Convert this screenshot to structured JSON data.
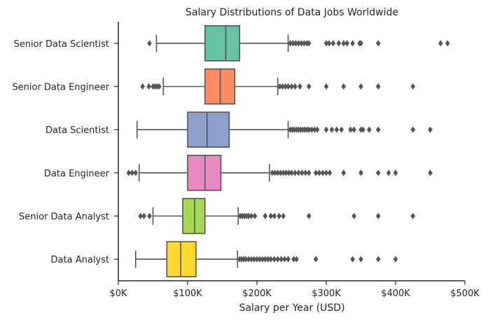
{
  "chart_data": {
    "type": "box",
    "orientation": "horizontal",
    "title": "Salary Distributions of Data Jobs Worldwide",
    "xlabel": "Salary per Year (USD)",
    "ylabel": "",
    "xlim": [
      0,
      500000
    ],
    "x_ticks": [
      {
        "value": 0,
        "label": "$0K"
      },
      {
        "value": 100000,
        "label": "$100K"
      },
      {
        "value": 200000,
        "label": "$200K"
      },
      {
        "value": 300000,
        "label": "$300K"
      },
      {
        "value": 400000,
        "label": "$400K"
      },
      {
        "value": 500000,
        "label": "$500K"
      }
    ],
    "grid": false,
    "categories": [
      "Senior Data Scientist",
      "Senior Data Engineer",
      "Data Scientist",
      "Data Engineer",
      "Senior Data Analyst",
      "Data Analyst"
    ],
    "boxes": [
      {
        "category": "Senior Data Scientist",
        "color": "#66c2a5",
        "whisker_low": 55000,
        "q1": 125000,
        "median": 155000,
        "q3": 175000,
        "whisker_high": 245000,
        "fliers": [
          45000,
          248000,
          252000,
          256000,
          260000,
          264000,
          268000,
          272000,
          275000,
          300000,
          304000,
          310000,
          318000,
          325000,
          330000,
          338000,
          348000,
          350000,
          375000,
          465000,
          475000
        ]
      },
      {
        "category": "Senior Data Engineer",
        "color": "#fc8d62",
        "whisker_low": 65000,
        "q1": 125000,
        "median": 147000,
        "q3": 168000,
        "whisker_high": 230000,
        "fliers": [
          35000,
          44000,
          50000,
          53000,
          56000,
          59000,
          233000,
          237000,
          241000,
          245000,
          250000,
          255000,
          262000,
          275000,
          300000,
          325000,
          350000,
          375000,
          425000
        ]
      },
      {
        "category": "Data Scientist",
        "color": "#8da0cb",
        "whisker_low": 27000,
        "q1": 100000,
        "median": 128000,
        "q3": 160000,
        "whisker_high": 245000,
        "fliers": [
          248000,
          251000,
          254000,
          257000,
          260000,
          263000,
          266000,
          269000,
          272000,
          275000,
          279000,
          283000,
          287000,
          300000,
          308000,
          315000,
          322000,
          335000,
          340000,
          350000,
          353000,
          362000,
          375000,
          425000,
          450000
        ]
      },
      {
        "category": "Data Engineer",
        "color": "#e78ac3",
        "whisker_low": 30000,
        "q1": 100000,
        "median": 125000,
        "q3": 148000,
        "whisker_high": 218000,
        "fliers": [
          15000,
          20000,
          25000,
          222000,
          226000,
          230000,
          234000,
          238000,
          242000,
          246000,
          250000,
          255000,
          260000,
          265000,
          270000,
          275000,
          285000,
          290000,
          295000,
          300000,
          305000,
          325000,
          350000,
          375000,
          390000,
          400000,
          450000
        ]
      },
      {
        "category": "Senior Data Analyst",
        "color": "#a6d854",
        "whisker_low": 50000,
        "q1": 93000,
        "median": 110000,
        "q3": 125000,
        "whisker_high": 173000,
        "fliers": [
          32000,
          37000,
          45000,
          176000,
          179000,
          182000,
          185000,
          188000,
          192000,
          197000,
          212000,
          220000,
          225000,
          232000,
          238000,
          275000,
          340000,
          375000,
          425000
        ]
      },
      {
        "category": "Data Analyst",
        "color": "#ffd92f",
        "whisker_low": 25000,
        "q1": 70000,
        "median": 90000,
        "q3": 112000,
        "whisker_high": 172000,
        "fliers": [
          175000,
          178000,
          181000,
          184000,
          188000,
          192000,
          196000,
          200000,
          204000,
          208000,
          212000,
          216000,
          220000,
          225000,
          230000,
          235000,
          240000,
          245000,
          253000,
          257000,
          285000,
          338000,
          350000,
          375000,
          400000
        ]
      }
    ]
  }
}
